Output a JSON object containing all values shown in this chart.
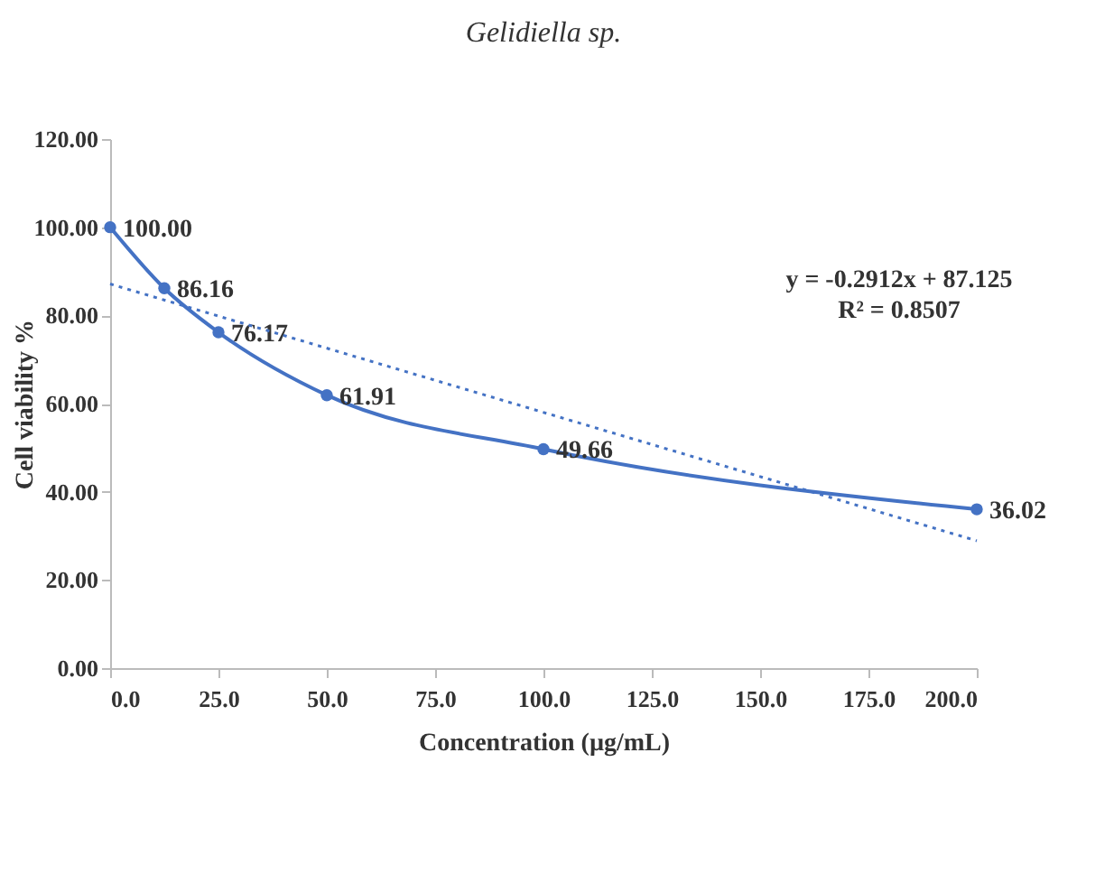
{
  "chart_data": {
    "type": "line",
    "title": "Gelidiella sp.",
    "xlabel": "Concentration (µg/mL)",
    "ylabel": "Cell viability %",
    "x": [
      0,
      12.5,
      25,
      50,
      100,
      200
    ],
    "series": [
      {
        "color": "#4472c4",
        "values": [
          100,
          86.16,
          76.17,
          61.91,
          49.66,
          36.02
        ],
        "value_labels": [
          "100.00",
          "86.16",
          "76.17",
          "61.91",
          "49.66",
          "36.02"
        ],
        "marker": "circle",
        "line_style": "solid"
      },
      {
        "type": "line",
        "x": [
          0,
          200
        ],
        "color": "#4472c4",
        "values": [
          87.125,
          28.885
        ],
        "marker": "none",
        "line_style": "dotted"
      }
    ],
    "xlim": [
      0,
      200
    ],
    "xticks": [
      {
        "value": 0,
        "label": "0.0"
      },
      {
        "value": 25,
        "label": "25.0"
      },
      {
        "value": 50,
        "label": "50.0"
      },
      {
        "value": 75,
        "label": "75.0"
      },
      {
        "value": 100,
        "label": "100.0"
      },
      {
        "value": 125,
        "label": "125.0"
      },
      {
        "value": 150,
        "label": "150.0"
      },
      {
        "value": 175,
        "label": "175.0"
      },
      {
        "value": 200,
        "label": "200.0"
      }
    ],
    "ylim": [
      0,
      120
    ],
    "yticks": [
      {
        "value": 0,
        "label": "0.00"
      },
      {
        "value": 20,
        "label": "20.00"
      },
      {
        "value": 40,
        "label": "40.00"
      },
      {
        "value": 60,
        "label": "60.00"
      },
      {
        "value": 80,
        "label": "80.00"
      },
      {
        "value": 100,
        "label": "100.00"
      },
      {
        "value": 120,
        "label": "120.00"
      }
    ],
    "annotations": [
      "y = -0.2912x + 87.125",
      "R² = 0.8507"
    ],
    "grid": false
  }
}
